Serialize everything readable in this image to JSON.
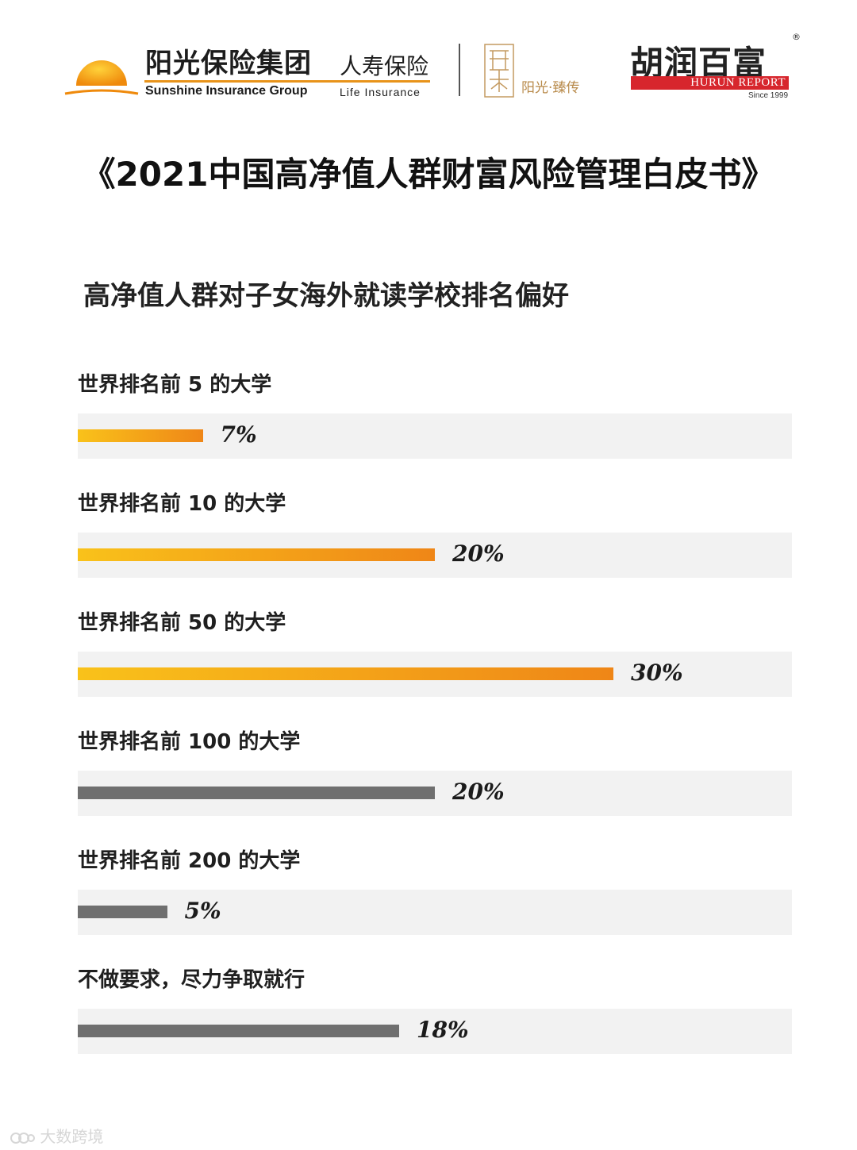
{
  "header": {
    "sunshine_cn": "阳光保险集团",
    "sunshine_en": "Sunshine Insurance Group",
    "life_cn": "人寿保险",
    "life_en": "Life Insurance",
    "seal_tagline": "阳光·臻传",
    "hurun_cn": "胡润百富",
    "hurun_en": "HURUN REPORT",
    "hurun_since": "Since 1999",
    "hurun_reg": "®",
    "colors": {
      "sunshine_orange": "#f39a12",
      "hurun_red": "#d7262d",
      "seal_gold": "#b88a4a"
    }
  },
  "report_title": "《2021中国高净值人群财富风险管理白皮书》",
  "chart_data": {
    "type": "bar",
    "orientation": "horizontal",
    "title": "高净值人群对子女海外就读学校排名偏好",
    "categories": [
      "世界排名前 5 的大学",
      "世界排名前 10 的大学",
      "世界排名前 50 的大学",
      "世界排名前 100 的大学",
      "世界排名前 200 的大学",
      "不做要求，尽力争取就行"
    ],
    "values": [
      7,
      20,
      30,
      20,
      5,
      18
    ],
    "value_labels": [
      "7%",
      "20%",
      "30%",
      "20%",
      "5%",
      "18%"
    ],
    "bar_styles": [
      "warm",
      "warm",
      "warm",
      "grey",
      "grey",
      "grey"
    ],
    "colors": {
      "warm_start": "#f9c21a",
      "warm_end": "#ef8617",
      "grey": "#6f6f6f",
      "track": "#f2f2f2"
    },
    "xlim": [
      0,
      40
    ],
    "grid": false
  },
  "watermark": {
    "text": "大数跨境",
    "icon": "logo-icon"
  }
}
